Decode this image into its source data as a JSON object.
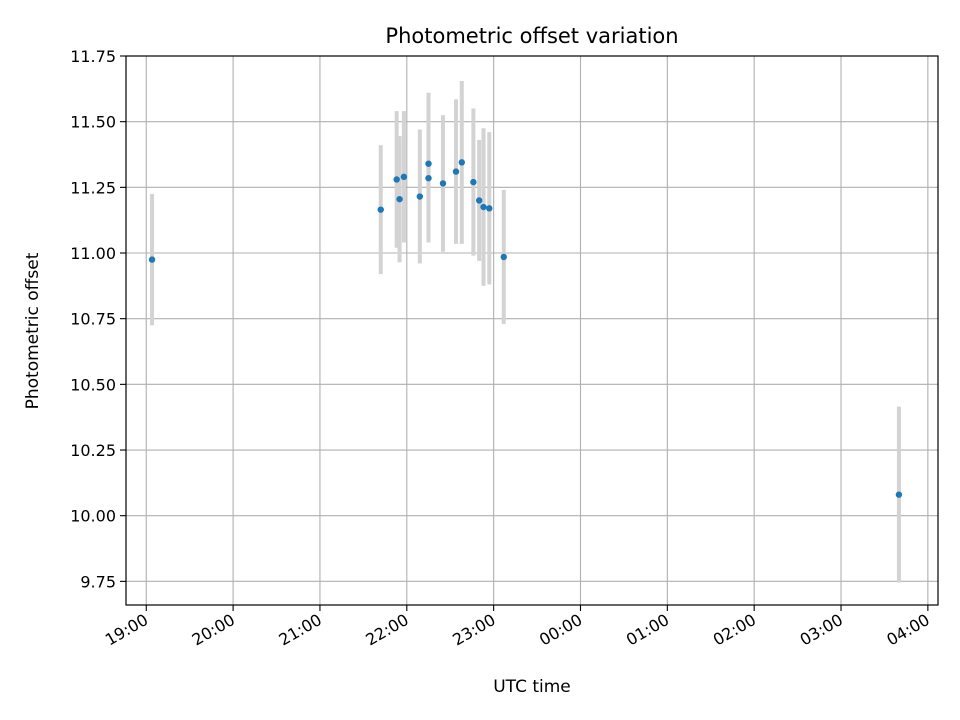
{
  "chart_data": {
    "type": "scatter",
    "title": "Photometric offset variation",
    "xlabel": "UTC time",
    "ylabel": "Photometric offset",
    "x_unit": "time of day (UTC), day 1 starts 19:00",
    "xlim": [
      "18:46",
      "04:07"
    ],
    "ylim": [
      9.66,
      11.75
    ],
    "x_ticks": [
      "19:00",
      "20:00",
      "21:00",
      "22:00",
      "23:00",
      "00:00",
      "01:00",
      "02:00",
      "03:00",
      "04:00"
    ],
    "y_ticks": [
      "9.75",
      "10.00",
      "10.25",
      "10.50",
      "10.75",
      "11.00",
      "11.25",
      "11.50",
      "11.75"
    ],
    "grid": true,
    "points": [
      {
        "t": "19:04",
        "y": 10.975,
        "err": 0.25
      },
      {
        "t": "21:42",
        "y": 11.165,
        "err": 0.245
      },
      {
        "t": "21:53",
        "y": 11.28,
        "err": 0.26
      },
      {
        "t": "21:55",
        "y": 11.205,
        "err": 0.24
      },
      {
        "t": "21:58",
        "y": 11.29,
        "err": 0.25
      },
      {
        "t": "22:09",
        "y": 11.215,
        "err": 0.255
      },
      {
        "t": "22:15",
        "y": 11.34,
        "err": 0.27
      },
      {
        "t": "22:15",
        "y": 11.285,
        "err": 0.245
      },
      {
        "t": "22:25",
        "y": 11.265,
        "err": 0.26
      },
      {
        "t": "22:34",
        "y": 11.31,
        "err": 0.275
      },
      {
        "t": "22:38",
        "y": 11.345,
        "err": 0.31
      },
      {
        "t": "22:46",
        "y": 11.27,
        "err": 0.28
      },
      {
        "t": "22:50",
        "y": 11.2,
        "err": 0.23
      },
      {
        "t": "22:53",
        "y": 11.175,
        "err": 0.3
      },
      {
        "t": "22:57",
        "y": 11.17,
        "err": 0.29
      },
      {
        "t": "23:07",
        "y": 10.985,
        "err": 0.255
      },
      {
        "t": "03:40",
        "y": 10.08,
        "err": 0.335
      }
    ],
    "marker_color": "#1f77b4",
    "errorbar_color": "#d3d3d3",
    "grid_color": "#b0b0b0"
  }
}
